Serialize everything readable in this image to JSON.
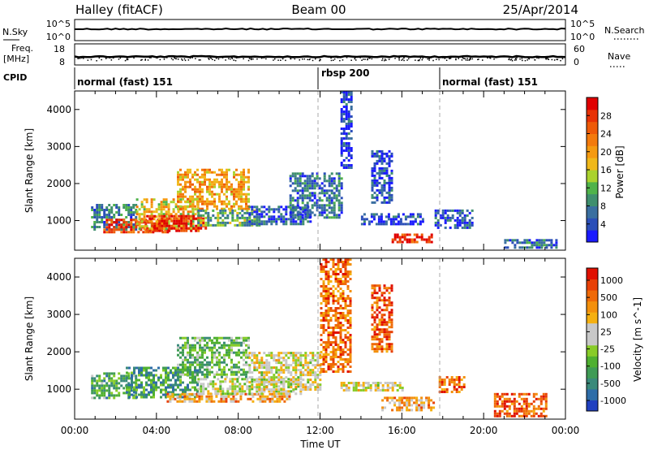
{
  "header": {
    "station": "Halley (fitACF)",
    "beam": "Beam 00",
    "date": "25/Apr/2014"
  },
  "nsky_panel": {
    "left_label": "N.Sky",
    "left_ticks": [
      "10^5",
      "10^0"
    ],
    "right_ticks": [
      "10^5",
      "10^0"
    ],
    "right_label": "N.Search",
    "right_label_style": "dotted"
  },
  "freq_panel": {
    "left_label_1": "Freq.",
    "left_label_2": "[MHz]",
    "left_ticks": [
      18,
      8
    ],
    "right_ticks": [
      60,
      0
    ],
    "right_label": "Nave",
    "right_label_style": "dotted"
  },
  "cpid_panel": {
    "label": "CPID",
    "segments": [
      {
        "name": "normal (fast) 151",
        "start_hour": 0,
        "end_hour": 12
      },
      {
        "name": "rbsp 200",
        "start_hour": 12,
        "end_hour": 18
      },
      {
        "name": "normal (fast) 151",
        "start_hour": 18,
        "end_hour": 24
      }
    ]
  },
  "chart_data": [
    {
      "type": "heatmap",
      "quantity": "Power",
      "xlabel": "",
      "ylabel": "Slant Range [km]",
      "xlim": [
        0,
        24
      ],
      "ylim": [
        200,
        4500
      ],
      "yticks": [
        1000,
        2000,
        3000,
        4000
      ],
      "cpid_boundaries": [
        12,
        18
      ],
      "colorbar": {
        "label": "Power [dB]",
        "range": [
          0,
          32
        ],
        "ticks": [
          4,
          8,
          12,
          16,
          20,
          24,
          28
        ],
        "colors": [
          "#1a1aff",
          "#2b4fb8",
          "#3a6fa0",
          "#3f8f6e",
          "#4fb34a",
          "#aad22e",
          "#f0b81a",
          "#f59a10",
          "#f37a0c",
          "#ee5a08",
          "#e83206",
          "#e00000"
        ]
      },
      "regions": [
        {
          "x": [
            0.8,
            3.0
          ],
          "r": [
            750,
            1450
          ],
          "level": 0.25
        },
        {
          "x": [
            1.4,
            4.5
          ],
          "r": [
            700,
            1050
          ],
          "level": 0.85
        },
        {
          "x": [
            3.0,
            6.0
          ],
          "r": [
            800,
            1600
          ],
          "level": 0.55
        },
        {
          "x": [
            3.5,
            6.5
          ],
          "r": [
            750,
            1150
          ],
          "level": 0.9
        },
        {
          "x": [
            5.0,
            8.5
          ],
          "r": [
            1300,
            2400
          ],
          "level": 0.6
        },
        {
          "x": [
            6.0,
            9.0
          ],
          "r": [
            850,
            1300
          ],
          "level": 0.35
        },
        {
          "x": [
            8.5,
            11.5
          ],
          "r": [
            900,
            1400
          ],
          "level": 0.15
        },
        {
          "x": [
            10.5,
            13.0
          ],
          "r": [
            1100,
            2300
          ],
          "level": 0.2
        },
        {
          "x": [
            13.0,
            13.5
          ],
          "r": [
            2400,
            4500
          ],
          "level": 0.1
        },
        {
          "x": [
            14.5,
            15.5
          ],
          "r": [
            1500,
            2900
          ],
          "level": 0.12
        },
        {
          "x": [
            14.0,
            17.0
          ],
          "r": [
            900,
            1200
          ],
          "level": 0.1
        },
        {
          "x": [
            15.5,
            17.5
          ],
          "r": [
            400,
            650
          ],
          "level": 0.9
        },
        {
          "x": [
            17.6,
            19.5
          ],
          "r": [
            800,
            1300
          ],
          "level": 0.15
        },
        {
          "x": [
            21.0,
            23.5
          ],
          "r": [
            250,
            500
          ],
          "level": 0.2
        }
      ]
    },
    {
      "type": "heatmap",
      "quantity": "Velocity",
      "xlabel": "Time UT",
      "ylabel": "Slant Range [km]",
      "xlim": [
        0,
        24
      ],
      "ylim": [
        200,
        4500
      ],
      "xticks": [
        "00:00",
        "04:00",
        "08:00",
        "12:00",
        "16:00",
        "20:00",
        "00:00"
      ],
      "yticks": [
        1000,
        2000,
        3000,
        4000
      ],
      "cpid_boundaries": [
        12,
        18
      ],
      "colorbar": {
        "label": "Velocity [m s^-1]",
        "ticks": [
          "1000",
          "500",
          "100",
          "25",
          "-25",
          "-100",
          "-500",
          "-1000"
        ],
        "colors": [
          "#2040c0",
          "#2e6da8",
          "#3a8a7a",
          "#3f9b55",
          "#4fb030",
          "#88cc28",
          "#c8c8c8",
          "#c8c8c8",
          "#f5b010",
          "#f3900c",
          "#ef6a08",
          "#e84006",
          "#e01000"
        ]
      },
      "regions": [
        {
          "x": [
            0.8,
            3.0
          ],
          "r": [
            750,
            1450
          ],
          "level": 0.3
        },
        {
          "x": [
            2.5,
            6.0
          ],
          "r": [
            800,
            1600
          ],
          "level": 0.25
        },
        {
          "x": [
            4.5,
            10.5
          ],
          "r": [
            700,
            900
          ],
          "level": 0.72
        },
        {
          "x": [
            5.0,
            8.5
          ],
          "r": [
            1300,
            2400
          ],
          "level": 0.35
        },
        {
          "x": [
            6.0,
            11.0
          ],
          "r": [
            850,
            1300
          ],
          "level": 0.5
        },
        {
          "x": [
            8.5,
            12.0
          ],
          "r": [
            1000,
            2000
          ],
          "level": 0.55
        },
        {
          "x": [
            12.0,
            13.5
          ],
          "r": [
            1500,
            4500
          ],
          "level": 0.8
        },
        {
          "x": [
            13.0,
            16.0
          ],
          "r": [
            1000,
            1200
          ],
          "level": 0.55
        },
        {
          "x": [
            14.5,
            15.5
          ],
          "r": [
            2000,
            3800
          ],
          "level": 0.85
        },
        {
          "x": [
            15.0,
            17.5
          ],
          "r": [
            450,
            800
          ],
          "level": 0.7
        },
        {
          "x": [
            17.8,
            19.0
          ],
          "r": [
            900,
            1350
          ],
          "level": 0.8
        },
        {
          "x": [
            20.5,
            23.0
          ],
          "r": [
            250,
            900
          ],
          "level": 0.85
        }
      ]
    }
  ]
}
